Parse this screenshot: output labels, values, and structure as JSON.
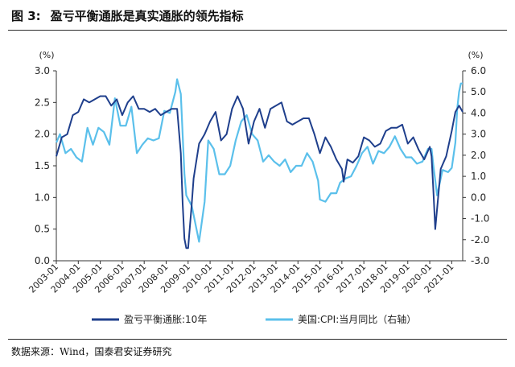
{
  "figure": {
    "label": "图 3:",
    "title": "盈亏平衡通胀是真实通胀的领先指标",
    "source": "数据来源：Wind，国泰君安证券研究"
  },
  "chart_data": {
    "type": "line",
    "left_axis": {
      "unit": "(%)",
      "ylim": [
        0,
        3.0
      ],
      "ticks": [
        0.0,
        0.5,
        1.0,
        1.5,
        2.0,
        2.5,
        3.0
      ],
      "tick_labels": [
        "0.0",
        "0.5",
        "1.0",
        "1.5",
        "2.0",
        "2.5",
        "3.0"
      ]
    },
    "right_axis": {
      "unit": "(%)",
      "ylim": [
        -3.0,
        6.0
      ],
      "ticks": [
        -3,
        -2,
        -1,
        0,
        1,
        2,
        3,
        4,
        5,
        6
      ],
      "tick_labels": [
        "-3.0",
        "-2.0",
        "-1.0",
        "0.0",
        "1.0",
        "2.0",
        "3.0",
        "4.0",
        "5.0",
        "6.0"
      ]
    },
    "x_ticks": [
      "2003-01",
      "2004-01",
      "2005-01",
      "2006-01",
      "2007-01",
      "2008-01",
      "2009-01",
      "2010-01",
      "2011-01",
      "2012-01",
      "2013-01",
      "2014-01",
      "2015-01",
      "2016-01",
      "2017-01",
      "2018-01",
      "2019-01",
      "2020-01",
      "2021-01"
    ],
    "x_range": [
      "2003-01",
      "2021-07"
    ],
    "grid": false,
    "legend_position": "bottom",
    "series": [
      {
        "name": "盈亏平衡通胀:10年",
        "axis": "left",
        "color": "#1f3f8c",
        "x": [
          "2003-01",
          "2003-04",
          "2003-07",
          "2003-10",
          "2004-01",
          "2004-04",
          "2004-07",
          "2004-10",
          "2005-01",
          "2005-04",
          "2005-07",
          "2005-10",
          "2006-01",
          "2006-04",
          "2006-07",
          "2006-10",
          "2007-01",
          "2007-04",
          "2007-07",
          "2007-10",
          "2008-01",
          "2008-04",
          "2008-07",
          "2008-09",
          "2008-10",
          "2008-11",
          "2008-12",
          "2009-01",
          "2009-03",
          "2009-04",
          "2009-07",
          "2009-10",
          "2010-01",
          "2010-04",
          "2010-07",
          "2010-10",
          "2011-01",
          "2011-04",
          "2011-07",
          "2011-10",
          "2012-01",
          "2012-04",
          "2012-07",
          "2012-10",
          "2013-01",
          "2013-04",
          "2013-07",
          "2013-10",
          "2014-01",
          "2014-04",
          "2014-07",
          "2014-10",
          "2015-01",
          "2015-04",
          "2015-07",
          "2015-10",
          "2016-01",
          "2016-02",
          "2016-04",
          "2016-07",
          "2016-10",
          "2017-01",
          "2017-04",
          "2017-07",
          "2017-10",
          "2018-01",
          "2018-04",
          "2018-07",
          "2018-10",
          "2019-01",
          "2019-04",
          "2019-07",
          "2019-10",
          "2020-01",
          "2020-02",
          "2020-03",
          "2020-04",
          "2020-07",
          "2020-10",
          "2021-01",
          "2021-03",
          "2021-05",
          "2021-07"
        ],
        "y": [
          1.65,
          1.95,
          2.0,
          2.3,
          2.35,
          2.55,
          2.5,
          2.55,
          2.6,
          2.6,
          2.45,
          2.55,
          2.3,
          2.5,
          2.6,
          2.4,
          2.4,
          2.35,
          2.4,
          2.3,
          2.35,
          2.4,
          2.4,
          1.7,
          0.9,
          0.35,
          0.2,
          0.2,
          0.9,
          1.3,
          1.85,
          2.0,
          2.2,
          2.35,
          1.9,
          2.0,
          2.4,
          2.6,
          2.4,
          1.85,
          2.2,
          2.4,
          2.1,
          2.4,
          2.45,
          2.5,
          2.2,
          2.15,
          2.2,
          2.25,
          2.25,
          2.0,
          1.7,
          1.95,
          1.8,
          1.6,
          1.45,
          1.25,
          1.6,
          1.55,
          1.65,
          1.95,
          1.9,
          1.8,
          1.85,
          2.05,
          2.1,
          2.1,
          2.15,
          1.85,
          1.95,
          1.75,
          1.6,
          1.8,
          1.65,
          1.1,
          0.5,
          1.45,
          1.65,
          2.05,
          2.35,
          2.45,
          2.35
        ]
      },
      {
        "name": "美国:CPI:当月同比（右轴）",
        "axis": "right",
        "color": "#5bc0eb",
        "x": [
          "2003-01",
          "2003-03",
          "2003-06",
          "2003-09",
          "2003-12",
          "2004-03",
          "2004-06",
          "2004-09",
          "2004-12",
          "2005-03",
          "2005-06",
          "2005-09",
          "2005-12",
          "2006-03",
          "2006-06",
          "2006-09",
          "2006-12",
          "2007-03",
          "2007-06",
          "2007-09",
          "2007-12",
          "2008-03",
          "2008-06",
          "2008-07",
          "2008-09",
          "2008-11",
          "2008-12",
          "2009-03",
          "2009-07",
          "2009-10",
          "2009-12",
          "2010-03",
          "2010-06",
          "2010-09",
          "2010-12",
          "2011-03",
          "2011-06",
          "2011-09",
          "2011-12",
          "2012-03",
          "2012-06",
          "2012-09",
          "2012-12",
          "2013-03",
          "2013-06",
          "2013-09",
          "2013-12",
          "2014-03",
          "2014-06",
          "2014-09",
          "2014-12",
          "2015-01",
          "2015-04",
          "2015-07",
          "2015-10",
          "2015-12",
          "2016-03",
          "2016-06",
          "2016-09",
          "2016-12",
          "2017-03",
          "2017-06",
          "2017-09",
          "2017-12",
          "2018-03",
          "2018-06",
          "2018-09",
          "2018-12",
          "2019-03",
          "2019-06",
          "2019-09",
          "2019-12",
          "2020-02",
          "2020-03",
          "2020-05",
          "2020-08",
          "2020-11",
          "2021-01",
          "2021-03",
          "2021-04",
          "2021-05",
          "2021-06",
          "2021-07"
        ],
        "y": [
          2.6,
          3.0,
          2.1,
          2.3,
          1.9,
          1.7,
          3.3,
          2.5,
          3.3,
          3.1,
          2.5,
          4.7,
          3.4,
          3.4,
          4.3,
          2.1,
          2.5,
          2.8,
          2.7,
          2.8,
          4.1,
          4.0,
          5.0,
          5.6,
          4.9,
          1.1,
          0.1,
          -0.4,
          -2.1,
          -0.2,
          2.7,
          2.3,
          1.1,
          1.1,
          1.5,
          2.7,
          3.6,
          3.9,
          3.0,
          2.7,
          1.7,
          2.0,
          1.7,
          1.5,
          1.8,
          1.2,
          1.5,
          1.5,
          2.1,
          1.7,
          0.8,
          -0.1,
          -0.2,
          0.2,
          0.2,
          0.7,
          0.9,
          1.0,
          1.5,
          2.1,
          2.4,
          1.6,
          2.2,
          2.1,
          2.4,
          2.9,
          2.3,
          1.9,
          1.9,
          1.6,
          1.7,
          2.3,
          2.3,
          1.5,
          0.1,
          1.3,
          1.2,
          1.4,
          2.6,
          4.2,
          5.0,
          5.4,
          5.4
        ]
      }
    ]
  }
}
